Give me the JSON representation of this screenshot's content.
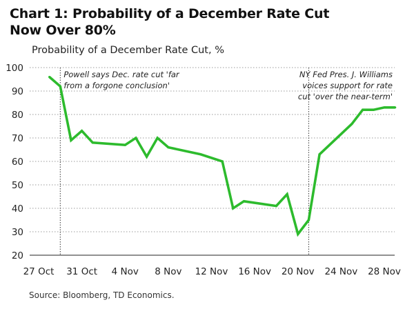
{
  "title_lines": [
    "Chart 1: Probability of a December Rate Cut",
    "Now Over 80%"
  ],
  "source": "Source: Bloomberg, TD Economics.",
  "chart_data": {
    "type": "line",
    "title": "Chart 1: Probability of a December Rate Cut Now Over 80%",
    "subtitle": "Probability of a December Rate Cut, %",
    "xlabel": "",
    "ylabel": "",
    "ylim": [
      20,
      100
    ],
    "yticks": [
      20,
      30,
      40,
      50,
      60,
      70,
      80,
      90,
      100
    ],
    "xlim": [
      "2025-10-27",
      "2025-11-28"
    ],
    "xticks": [
      {
        "date": "2025-10-27",
        "label": "27 Oct"
      },
      {
        "date": "2025-10-31",
        "label": "31 Oct"
      },
      {
        "date": "2025-11-04",
        "label": "4 Nov"
      },
      {
        "date": "2025-11-08",
        "label": "8 Nov"
      },
      {
        "date": "2025-11-12",
        "label": "12 Nov"
      },
      {
        "date": "2025-11-16",
        "label": "16 Nov"
      },
      {
        "date": "2025-11-20",
        "label": "20 Nov"
      },
      {
        "date": "2025-11-24",
        "label": "24 Nov"
      },
      {
        "date": "2025-11-28",
        "label": "28 Nov"
      }
    ],
    "grid": "horizontal-dotted",
    "series": [
      {
        "color": "#2dbb2d",
        "points": [
          {
            "x": "2025-10-28",
            "y": 96
          },
          {
            "x": "2025-10-29",
            "y": 92
          },
          {
            "x": "2025-10-30",
            "y": 69
          },
          {
            "x": "2025-10-31",
            "y": 73
          },
          {
            "x": "2025-11-01",
            "y": 68
          },
          {
            "x": "2025-11-04",
            "y": 67
          },
          {
            "x": "2025-11-05",
            "y": 70
          },
          {
            "x": "2025-11-06",
            "y": 62
          },
          {
            "x": "2025-11-07",
            "y": 70
          },
          {
            "x": "2025-11-08",
            "y": 66
          },
          {
            "x": "2025-11-11",
            "y": 63
          },
          {
            "x": "2025-11-13",
            "y": 60
          },
          {
            "x": "2025-11-14",
            "y": 40
          },
          {
            "x": "2025-11-15",
            "y": 43
          },
          {
            "x": "2025-11-18",
            "y": 41
          },
          {
            "x": "2025-11-19",
            "y": 46
          },
          {
            "x": "2025-11-20",
            "y": 29
          },
          {
            "x": "2025-11-21",
            "y": 35
          },
          {
            "x": "2025-11-22",
            "y": 63
          },
          {
            "x": "2025-11-25",
            "y": 76
          },
          {
            "x": "2025-11-26",
            "y": 82
          },
          {
            "x": "2025-11-27",
            "y": 82
          },
          {
            "x": "2025-11-28",
            "y": 83
          },
          {
            "x": "2025-11-29",
            "y": 83
          }
        ]
      }
    ],
    "annotations": [
      {
        "x": "2025-10-29",
        "text_lines": [
          "Powell says Dec. rate cut 'far",
          "from a forgone conclusion'"
        ],
        "align": "left"
      },
      {
        "x": "2025-11-21",
        "text_lines": [
          "NY Fed Pres. J. Williams",
          "voices support for rate",
          "cut 'over the near-term'"
        ],
        "align": "right"
      }
    ]
  }
}
